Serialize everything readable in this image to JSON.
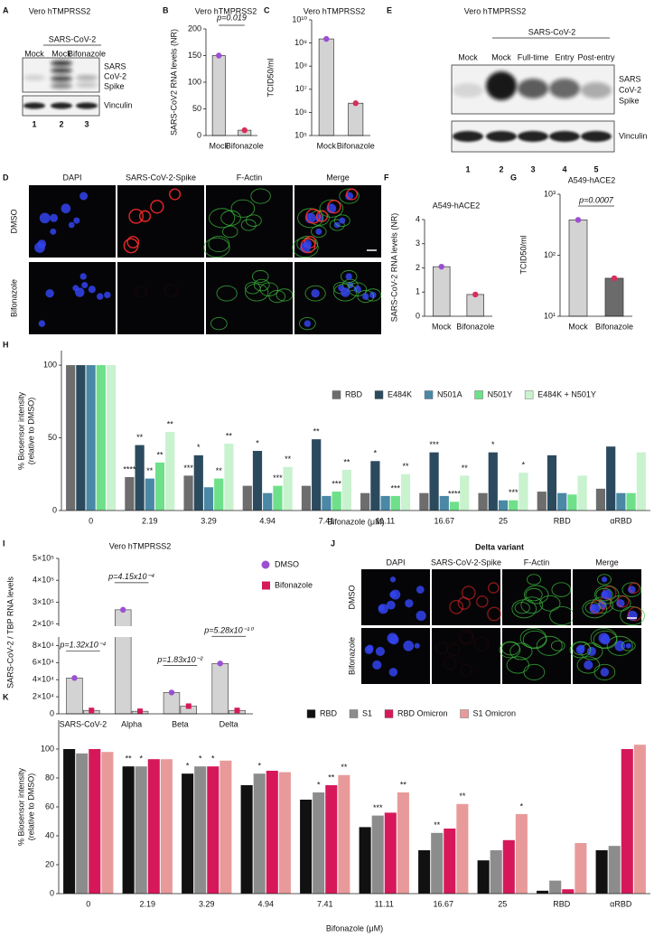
{
  "figure": {
    "panel_letters": [
      "A",
      "B",
      "C",
      "D",
      "E",
      "F",
      "G",
      "H",
      "I",
      "J",
      "K"
    ],
    "blot_A": {
      "title": "Vero hTMPRSS2",
      "group": "SARS-CoV-2",
      "lanes": [
        "Mock",
        "Mock",
        "Bifonazole"
      ],
      "target": [
        "SARS",
        "CoV-2",
        "Spike"
      ],
      "loading": "Vinculin",
      "lane_numbers": [
        1,
        2,
        3
      ]
    },
    "blot_E": {
      "title": "Vero hTMPRSS2",
      "group": "SARS-CoV-2",
      "lanes": [
        "Mock",
        "Mock",
        "Full-time",
        "Entry",
        "Post-entry"
      ],
      "target": [
        "SARS",
        "CoV-2",
        "Spike"
      ],
      "loading": "Vinculin",
      "lane_numbers": [
        1,
        2,
        3,
        4,
        5
      ]
    },
    "micrograph_D": {
      "columns": [
        "DAPI",
        "SARS-CoV-2-Spike",
        "F-Actin",
        "Merge"
      ],
      "rows": [
        "DMSO",
        "Bifonazole"
      ]
    },
    "micrograph_J": {
      "title": "Delta variant",
      "columns": [
        "DAPI",
        "SARS-CoV-2-Spike",
        "F-Actin",
        "Merge"
      ],
      "rows": [
        "DMSO",
        "Bifonazole"
      ]
    }
  },
  "chart_data": [
    {
      "type": "bar",
      "title": "Vero hTMPRSS2",
      "ylabel": "SARS-CoV2 RNA levels (NR)",
      "categories": [
        "Mock",
        "Bifonazole"
      ],
      "values": [
        150,
        10
      ],
      "colors": [
        "#d3d3d3",
        "#d3d3d3"
      ],
      "point_colors": [
        "#9b4fd1",
        "#d62f5a"
      ],
      "ylim": [
        0,
        200
      ],
      "yticks": [
        0,
        50,
        100,
        150,
        200
      ],
      "annotation": "p=0.019"
    },
    {
      "type": "bar",
      "title": "Vero hTMPRSS2",
      "ylabel": "TCID50/ml",
      "categories": [
        "Mock",
        "Bifonazole"
      ],
      "values": [
        1500000000,
        2500000
      ],
      "colors": [
        "#d3d3d3",
        "#d3d3d3"
      ],
      "point_colors": [
        "#9b4fd1",
        "#d62f5a"
      ],
      "log_scale": true,
      "ylim": [
        100000,
        10000000000
      ],
      "yticks": [
        {
          "value": 100000,
          "label": "10⁵"
        },
        {
          "value": 1000000,
          "label": "10⁶"
        },
        {
          "value": 10000000,
          "label": "10⁷"
        },
        {
          "value": 100000000,
          "label": "10⁸"
        },
        {
          "value": 1000000000,
          "label": "10⁹"
        },
        {
          "value": 10000000000,
          "label": "10¹⁰"
        }
      ]
    },
    {
      "type": "bar",
      "title": "A549-hACE2",
      "ylabel": "SARS-CoV-2 RNA levels (NR)",
      "categories": [
        "Mock",
        "Bifonazole"
      ],
      "values": [
        2.05,
        0.9
      ],
      "colors": [
        "#d3d3d3",
        "#d3d3d3"
      ],
      "point_colors": [
        "#9b4fd1",
        "#d62f5a"
      ],
      "ylim": [
        0,
        4
      ],
      "yticks": [
        0,
        1,
        2,
        3,
        4
      ]
    },
    {
      "type": "bar",
      "title": "A549-hACE2",
      "ylabel": "TCID50/ml",
      "categories": [
        "Mock",
        "Bifonazole"
      ],
      "values": [
        380,
        42
      ],
      "colors": [
        "#d3d3d3",
        "#6b6b6b"
      ],
      "point_colors": [
        "#9b4fd1",
        "#d62f5a"
      ],
      "log_scale": true,
      "ylim": [
        10,
        1000
      ],
      "yticks": [
        {
          "value": 10,
          "label": "10¹"
        },
        {
          "value": 100,
          "label": "10²"
        },
        {
          "value": 1000,
          "label": "10³"
        }
      ],
      "annotation": "p=0.0007"
    },
    {
      "type": "grouped_bar",
      "ylabel": [
        "% Biosensor intensity",
        "(relative to DMSO)"
      ],
      "xlabel": "Bifonazole (μM)",
      "categories": [
        "0",
        "2.19",
        "3.29",
        "4.94",
        "7.41",
        "11.11",
        "16.67",
        "25",
        "RBD",
        "αRBD"
      ],
      "ylim": [
        0,
        110
      ],
      "yticks": [
        0,
        50,
        100
      ],
      "legend": "upper right",
      "series": [
        {
          "name": "RBD",
          "color": "#6d6d6d",
          "values": [
            100,
            23,
            24,
            17,
            17,
            12,
            12,
            12,
            13,
            15
          ],
          "significance": [
            null,
            "****",
            "***",
            null,
            null,
            null,
            null,
            null,
            null,
            null
          ]
        },
        {
          "name": "E484K",
          "color": "#2b4a5e",
          "values": [
            100,
            45,
            38,
            41,
            49,
            34,
            40,
            40,
            38,
            44
          ],
          "significance": [
            null,
            "**",
            "*",
            "*",
            "**",
            "*",
            "***",
            "*",
            null,
            null
          ]
        },
        {
          "name": "N501A",
          "color": "#4a88a6",
          "values": [
            100,
            22,
            16,
            12,
            10,
            10,
            10,
            7,
            12,
            12
          ],
          "significance": [
            null,
            "**",
            null,
            null,
            null,
            null,
            null,
            null,
            null,
            null
          ]
        },
        {
          "name": "N501Y",
          "color": "#6ee08a",
          "values": [
            100,
            33,
            22,
            17,
            13,
            10,
            6,
            7,
            11,
            12
          ],
          "significance": [
            null,
            "**",
            "**",
            "***",
            "***",
            "***",
            "****",
            "***",
            null,
            null
          ]
        },
        {
          "name": "E484K + N501Y",
          "color": "#c9f2cf",
          "values": [
            100,
            54,
            46,
            30,
            28,
            25,
            24,
            26,
            24,
            40
          ],
          "significance": [
            null,
            "**",
            "**",
            "**",
            "**",
            "**",
            "**",
            "*",
            null,
            null
          ]
        }
      ]
    },
    {
      "type": "grouped_bar",
      "title": "Vero hTMPRSS2",
      "ylabel": "SARS-CoV-2 / TBP RNA levels",
      "categories": [
        "SARS-CoV-2",
        "Alpha",
        "Beta",
        "Delta"
      ],
      "bar_color": "#d3d3d3",
      "ylim": [
        0,
        500000
      ],
      "axis_break": [
        90000,
        190000
      ],
      "legend": "upper right",
      "yticks": [
        0,
        {
          "value": 20000,
          "label": "2×10⁴"
        },
        {
          "value": 40000,
          "label": "4×10⁴"
        },
        {
          "value": 60000,
          "label": "6×10⁴"
        },
        {
          "value": 80000,
          "label": "8×10⁴"
        },
        {
          "value": 200000,
          "label": "2×10⁵"
        },
        {
          "value": 300000,
          "label": "3×10⁵"
        },
        {
          "value": 400000,
          "label": "4×10⁵"
        },
        {
          "value": 500000,
          "label": "5×10⁵"
        }
      ],
      "category_annotations": [
        "p=1.32x10⁻⁴",
        "p=4.15x10⁻⁴",
        "p=1.83x10⁻²",
        "p=5.28x10⁻¹⁰"
      ],
      "series": [
        {
          "name": "DMSO",
          "color": "#9b4fd1",
          "marker": "circle",
          "values": [
            42000,
            265000,
            25000,
            59000
          ]
        },
        {
          "name": "Bifonazole",
          "color": "#d6185a",
          "marker": "square",
          "values": [
            4000,
            3000,
            9000,
            4000
          ]
        }
      ]
    },
    {
      "type": "grouped_bar",
      "ylabel": [
        "% Biosensor intensity",
        "(relative to DMSO)"
      ],
      "xlabel": "Bifonazole (μM)",
      "categories": [
        "0",
        "2.19",
        "3.29",
        "4.94",
        "7.41",
        "11.11",
        "16.67",
        "25",
        "RBD",
        "αRBD"
      ],
      "ylim": [
        0,
        120
      ],
      "yticks": [
        0,
        20,
        40,
        60,
        80,
        100
      ],
      "legend": "upper right",
      "series": [
        {
          "name": "RBD",
          "color": "#111111",
          "values": [
            100,
            88,
            83,
            75,
            65,
            46,
            30,
            23,
            2,
            30
          ],
          "significance": [
            null,
            "**",
            "*",
            null,
            null,
            null,
            null,
            null,
            null,
            null
          ]
        },
        {
          "name": "S1",
          "color": "#8c8c8c",
          "values": [
            97,
            88,
            88,
            83,
            70,
            54,
            42,
            30,
            9,
            33
          ],
          "significance": [
            null,
            "*",
            "*",
            "*",
            "*",
            "***",
            "**",
            null,
            null,
            null
          ]
        },
        {
          "name": "RBD Omicron",
          "color": "#d6185a",
          "values": [
            100,
            93,
            88,
            85,
            75,
            56,
            45,
            37,
            3,
            100
          ],
          "significance": [
            null,
            null,
            "*",
            null,
            "**",
            null,
            null,
            null,
            null,
            null
          ]
        },
        {
          "name": "S1 Omicron",
          "color": "#e89a9a",
          "values": [
            98,
            93,
            92,
            84,
            82,
            70,
            62,
            55,
            35,
            103
          ],
          "significance": [
            null,
            null,
            null,
            null,
            "**",
            "**",
            "**",
            "*",
            null,
            null
          ]
        }
      ]
    }
  ]
}
